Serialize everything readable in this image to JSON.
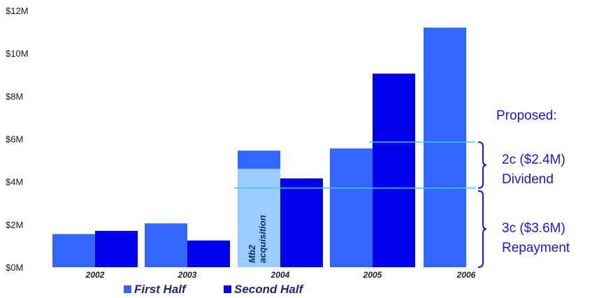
{
  "chart_data": {
    "type": "bar",
    "categories": [
      "2002",
      "2003",
      "2004",
      "2005",
      "2006"
    ],
    "series": [
      {
        "name": "First Half",
        "values": [
          1.55,
          2.05,
          5.45,
          5.55,
          11.2
        ],
        "color": "#3366ff"
      },
      {
        "name": "Second Half",
        "values": [
          1.7,
          1.25,
          4.15,
          9.05,
          null
        ],
        "color": "#0000ee"
      }
    ],
    "ylim": [
      0,
      12
    ],
    "yticks": [
      "$0M",
      "$2M",
      "$4M",
      "$6M",
      "$8M",
      "$10M",
      "$12M"
    ],
    "annotation": {
      "category": "2004",
      "series": "First Half",
      "value": 4.6,
      "label_line1": "Mb2",
      "label_line2": "acquisition",
      "color": "#99ccff"
    },
    "reference_lines": [
      {
        "value": 5.85,
        "x_from_category": "2005"
      },
      {
        "value": 3.7,
        "x_from_category": "2004"
      }
    ],
    "side_labels": {
      "proposed": "Proposed:",
      "dividend_line1": "2c ($2.4M)",
      "dividend_line2": "Dividend",
      "repayment_line1": "3c ($3.6M)",
      "repayment_line2": "Repayment"
    },
    "legend": [
      "First Half",
      "Second Half"
    ],
    "grid": false,
    "legend_placement": "bottom"
  },
  "colors": {
    "reference_line": "#33ccff",
    "brace": "#1a14e8"
  }
}
